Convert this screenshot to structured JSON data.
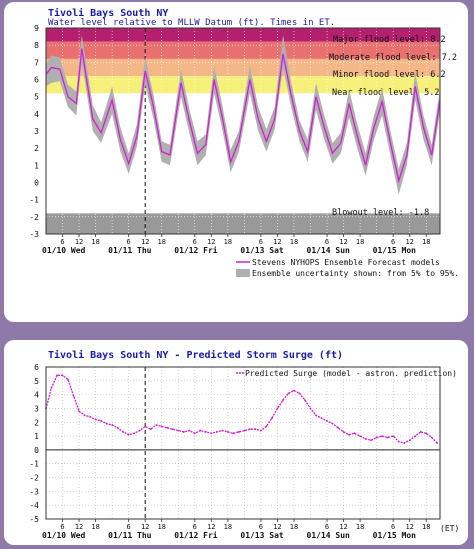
{
  "charts": [
    {
      "title": "Tivoli Bays South NY",
      "subtitle": "Water level relative to MLLW Datum (ft). Times in ET.",
      "flood_levels": [
        {
          "label": "Major flood level: 8.2",
          "value": 8.2,
          "color": "#b5206e"
        },
        {
          "label": "Moderate flood level: 7.2",
          "value": 7.2,
          "color": "#e8706e"
        },
        {
          "label": "Minor flood level: 6.2",
          "value": 6.2,
          "color": "#f4b888"
        },
        {
          "label": "Near flood level: 5.2",
          "value": 5.2,
          "color": "#f6f07a"
        },
        {
          "label": "Blowout level: -1.8",
          "value": -1.8,
          "color": "#999999"
        }
      ],
      "legend": [
        {
          "label": "Stevens NYHOPS Ensemble Forecast models",
          "color": "#d020d0"
        },
        {
          "label": "Ensemble uncertainty shown: from 5% to 95%.",
          "color": "#b0b0b0"
        }
      ]
    },
    {
      "title": "Tivoli Bays South NY - Predicted Storm Surge (ft)",
      "legend": [
        {
          "label": "Predicted Surge (model - astron. prediction)",
          "color": "#d020d0"
        }
      ],
      "et_label": "(ET)"
    }
  ],
  "chart_data": [
    {
      "type": "line",
      "title": "Tivoli Bays South NY",
      "ylim": [
        -3,
        9
      ],
      "y_ticks": [
        -3,
        -2,
        -1,
        0,
        1,
        2,
        3,
        4,
        5,
        6,
        7,
        8,
        9
      ],
      "xlim_hours": [
        0,
        143
      ],
      "hour_ticks": [
        "6",
        "12",
        "18",
        "6",
        "12",
        "18",
        "6",
        "12",
        "18",
        "6",
        "12",
        "18",
        "6",
        "12",
        "18",
        "6",
        "12",
        "18"
      ],
      "day_labels": [
        "01/10 Wed",
        "01/11 Thu",
        "01/12 Fri",
        "01/13 Sat",
        "01/14 Sun",
        "01/15 Mon"
      ],
      "now_marker_hour": 36,
      "series": [
        {
          "name": "Stevens NYHOPS Ensemble Forecast models",
          "x": [
            0,
            2,
            5,
            8,
            11,
            13,
            17,
            20,
            24,
            27,
            30,
            33,
            36,
            39,
            42,
            45,
            49,
            52,
            55,
            58,
            61,
            64,
            67,
            70,
            74,
            77,
            80,
            83,
            86,
            89,
            92,
            95,
            98,
            101,
            104,
            107,
            110,
            113,
            116,
            119,
            122,
            125,
            128,
            131,
            134,
            137,
            140,
            143
          ],
          "values": [
            6.3,
            6.7,
            6.6,
            5.0,
            4.6,
            7.8,
            3.7,
            2.9,
            4.8,
            2.5,
            1.1,
            2.7,
            6.5,
            4.4,
            1.8,
            1.6,
            5.8,
            3.6,
            1.7,
            2.2,
            6.0,
            3.8,
            1.2,
            2.4,
            6.0,
            3.7,
            2.4,
            3.7,
            7.5,
            5.1,
            3.0,
            1.8,
            5.0,
            3.2,
            1.7,
            2.3,
            4.6,
            2.7,
            1.0,
            3.2,
            4.7,
            2.3,
            0.1,
            1.6,
            5.6,
            3.2,
            1.6,
            4.8
          ]
        },
        {
          "name": "Ensemble uncertainty shown: from 5% to 95%.",
          "x": [
            0,
            2,
            5,
            8,
            11,
            13,
            17,
            20,
            24,
            27,
            30,
            33,
            36,
            39,
            42,
            45,
            49,
            52,
            55,
            58,
            61,
            64,
            67,
            70,
            74,
            77,
            80,
            83,
            86,
            89,
            92,
            95,
            98,
            101,
            104,
            107,
            110,
            113,
            116,
            119,
            122,
            125,
            128,
            131,
            134,
            137,
            140,
            143
          ],
          "low": [
            5.6,
            5.8,
            5.9,
            4.4,
            3.9,
            7.0,
            3.0,
            2.3,
            4.0,
            1.8,
            0.5,
            2.1,
            5.7,
            3.7,
            1.2,
            1.0,
            5.0,
            2.9,
            1.0,
            1.6,
            5.2,
            3.1,
            0.6,
            1.8,
            5.2,
            3.0,
            1.8,
            3.1,
            6.7,
            4.4,
            2.4,
            1.2,
            4.2,
            2.5,
            1.1,
            1.7,
            3.8,
            2.0,
            0.4,
            2.5,
            3.9,
            1.6,
            -0.7,
            1.0,
            4.8,
            2.5,
            1.0,
            4.1
          ],
          "high": [
            6.9,
            7.4,
            7.3,
            5.7,
            5.3,
            8.6,
            4.5,
            3.5,
            5.6,
            3.2,
            1.7,
            3.4,
            7.3,
            5.1,
            2.4,
            2.2,
            6.6,
            4.3,
            2.4,
            2.8,
            6.8,
            4.5,
            1.9,
            3.0,
            6.8,
            4.4,
            3.1,
            4.4,
            8.6,
            5.8,
            3.6,
            2.5,
            5.8,
            3.9,
            2.3,
            2.9,
            5.4,
            3.4,
            1.7,
            3.9,
            5.5,
            3.0,
            0.8,
            2.3,
            6.4,
            3.9,
            2.2,
            5.5
          ]
        }
      ]
    },
    {
      "type": "line",
      "title": "Tivoli Bays South NY - Predicted Storm Surge (ft)",
      "ylim": [
        -5,
        6
      ],
      "y_ticks": [
        -5,
        -4,
        -3,
        -2,
        -1,
        0,
        1,
        2,
        3,
        4,
        5,
        6
      ],
      "xlim_hours": [
        0,
        143
      ],
      "hour_ticks": [
        "6",
        "12",
        "18",
        "6",
        "12",
        "18",
        "6",
        "12",
        "18",
        "6",
        "12",
        "18",
        "6",
        "12",
        "18",
        "6",
        "12",
        "18"
      ],
      "day_labels": [
        "01/10 Wed",
        "01/11 Thu",
        "01/12 Fri",
        "01/13 Sat",
        "01/14 Sun",
        "01/15 Mon"
      ],
      "now_marker_hour": 36,
      "series": [
        {
          "name": "Predicted Surge (model - astron. prediction)",
          "x": [
            0,
            2,
            4,
            6,
            8,
            10,
            12,
            14,
            16,
            18,
            20,
            22,
            24,
            26,
            28,
            30,
            32,
            34,
            36,
            38,
            40,
            42,
            44,
            46,
            48,
            50,
            52,
            54,
            56,
            58,
            60,
            62,
            64,
            66,
            68,
            70,
            72,
            74,
            76,
            78,
            80,
            82,
            84,
            86,
            88,
            90,
            92,
            94,
            96,
            98,
            100,
            102,
            104,
            106,
            108,
            110,
            112,
            114,
            116,
            118,
            120,
            122,
            124,
            126,
            128,
            130,
            132,
            134,
            136,
            138,
            140,
            142
          ],
          "values": [
            3.0,
            4.5,
            5.4,
            5.4,
            5.1,
            3.9,
            2.8,
            2.5,
            2.4,
            2.2,
            2.1,
            1.9,
            1.8,
            1.6,
            1.3,
            1.1,
            1.2,
            1.4,
            1.7,
            1.5,
            1.8,
            1.7,
            1.6,
            1.5,
            1.4,
            1.3,
            1.4,
            1.2,
            1.4,
            1.3,
            1.2,
            1.3,
            1.4,
            1.3,
            1.2,
            1.3,
            1.4,
            1.5,
            1.5,
            1.4,
            1.7,
            2.3,
            3.0,
            3.6,
            4.1,
            4.3,
            4.1,
            3.6,
            3.0,
            2.5,
            2.3,
            2.1,
            1.9,
            1.6,
            1.3,
            1.1,
            1.2,
            1.0,
            0.8,
            0.7,
            0.9,
            1.0,
            0.9,
            1.0,
            0.6,
            0.5,
            0.7,
            1.0,
            1.3,
            1.2,
            0.9,
            0.5
          ]
        }
      ]
    }
  ]
}
